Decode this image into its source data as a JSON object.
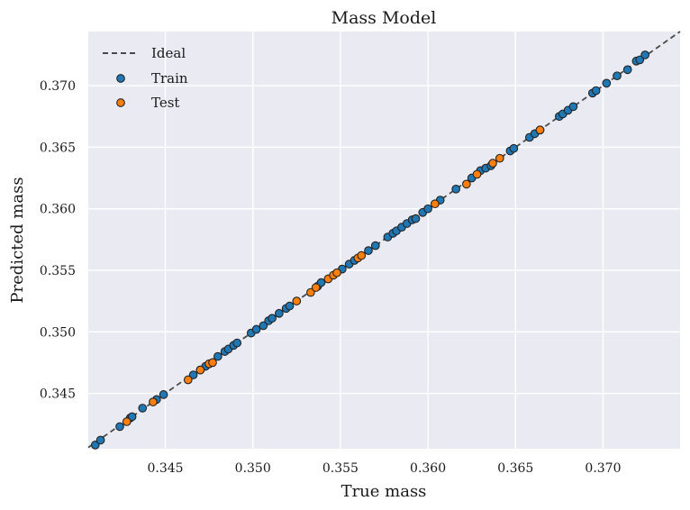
{
  "chart_data": {
    "type": "scatter",
    "title": "Mass Model",
    "xlabel": "True mass",
    "ylabel": "Predicted mass",
    "xlim": [
      0.3406,
      0.3744
    ],
    "ylim": [
      0.3405,
      0.3744
    ],
    "xticks": [
      0.345,
      0.35,
      0.355,
      0.36,
      0.365,
      0.37
    ],
    "yticks": [
      0.345,
      0.35,
      0.355,
      0.36,
      0.365,
      0.37
    ],
    "xtick_labels": [
      "0.345",
      "0.350",
      "0.355",
      "0.360",
      "0.365",
      "0.370"
    ],
    "ytick_labels": [
      "0.345",
      "0.350",
      "0.355",
      "0.360",
      "0.365",
      "0.370"
    ],
    "grid": true,
    "legend_position": "top-left",
    "ideal_line": {
      "name": "Ideal",
      "x": [
        0.3406,
        0.3744
      ],
      "y": [
        0.3406,
        0.3744
      ],
      "color": "#4a4a4a",
      "style": "dashed"
    },
    "series": [
      {
        "name": "Train",
        "color": "#1f77b4",
        "points": [
          [
            0.341,
            0.3408
          ],
          [
            0.3413,
            0.3412
          ],
          [
            0.3424,
            0.3423
          ],
          [
            0.343,
            0.343
          ],
          [
            0.3431,
            0.3431
          ],
          [
            0.3437,
            0.3438
          ],
          [
            0.3445,
            0.3445
          ],
          [
            0.3449,
            0.3449
          ],
          [
            0.3466,
            0.3465
          ],
          [
            0.347,
            0.3469
          ],
          [
            0.3473,
            0.3472
          ],
          [
            0.348,
            0.348
          ],
          [
            0.3484,
            0.3484
          ],
          [
            0.3486,
            0.3486
          ],
          [
            0.3489,
            0.3489
          ],
          [
            0.3491,
            0.3491
          ],
          [
            0.3499,
            0.3499
          ],
          [
            0.3502,
            0.3502
          ],
          [
            0.3506,
            0.3505
          ],
          [
            0.3509,
            0.3509
          ],
          [
            0.3511,
            0.3511
          ],
          [
            0.3515,
            0.3515
          ],
          [
            0.3519,
            0.3519
          ],
          [
            0.3521,
            0.3521
          ],
          [
            0.3537,
            0.3537
          ],
          [
            0.3539,
            0.354
          ],
          [
            0.3551,
            0.3551
          ],
          [
            0.3555,
            0.3555
          ],
          [
            0.3558,
            0.3558
          ],
          [
            0.3566,
            0.3566
          ],
          [
            0.357,
            0.357
          ],
          [
            0.3577,
            0.3577
          ],
          [
            0.358,
            0.358
          ],
          [
            0.3582,
            0.3582
          ],
          [
            0.3585,
            0.3585
          ],
          [
            0.3588,
            0.3588
          ],
          [
            0.3591,
            0.3591
          ],
          [
            0.3593,
            0.3592
          ],
          [
            0.3597,
            0.3597
          ],
          [
            0.36,
            0.36
          ],
          [
            0.3607,
            0.3607
          ],
          [
            0.3616,
            0.3616
          ],
          [
            0.3625,
            0.3625
          ],
          [
            0.363,
            0.3631
          ],
          [
            0.3633,
            0.3633
          ],
          [
            0.3636,
            0.3635
          ],
          [
            0.3647,
            0.3647
          ],
          [
            0.3649,
            0.3649
          ],
          [
            0.3658,
            0.3658
          ],
          [
            0.3661,
            0.3661
          ],
          [
            0.3664,
            0.3664
          ],
          [
            0.3675,
            0.3675
          ],
          [
            0.3677,
            0.3677
          ],
          [
            0.368,
            0.368
          ],
          [
            0.3683,
            0.3683
          ],
          [
            0.3694,
            0.3694
          ],
          [
            0.3696,
            0.3696
          ],
          [
            0.3702,
            0.3702
          ],
          [
            0.3708,
            0.3708
          ],
          [
            0.3714,
            0.3713
          ],
          [
            0.3719,
            0.372
          ],
          [
            0.3721,
            0.3721
          ],
          [
            0.3724,
            0.3725
          ]
        ]
      },
      {
        "name": "Test",
        "color": "#ff7f0e",
        "points": [
          [
            0.3428,
            0.3427
          ],
          [
            0.3443,
            0.3443
          ],
          [
            0.3463,
            0.3461
          ],
          [
            0.347,
            0.3469
          ],
          [
            0.3475,
            0.3474
          ],
          [
            0.3477,
            0.3475
          ],
          [
            0.3525,
            0.3525
          ],
          [
            0.3533,
            0.3532
          ],
          [
            0.3536,
            0.3536
          ],
          [
            0.3543,
            0.3543
          ],
          [
            0.3546,
            0.3546
          ],
          [
            0.3548,
            0.3548
          ],
          [
            0.356,
            0.356
          ],
          [
            0.3562,
            0.3562
          ],
          [
            0.3604,
            0.3604
          ],
          [
            0.3622,
            0.362
          ],
          [
            0.3628,
            0.3628
          ],
          [
            0.3637,
            0.3637
          ],
          [
            0.3641,
            0.3641
          ],
          [
            0.3664,
            0.3664
          ]
        ]
      }
    ]
  },
  "legend": {
    "items": [
      {
        "label": "Ideal"
      },
      {
        "label": "Train"
      },
      {
        "label": "Test"
      }
    ]
  }
}
